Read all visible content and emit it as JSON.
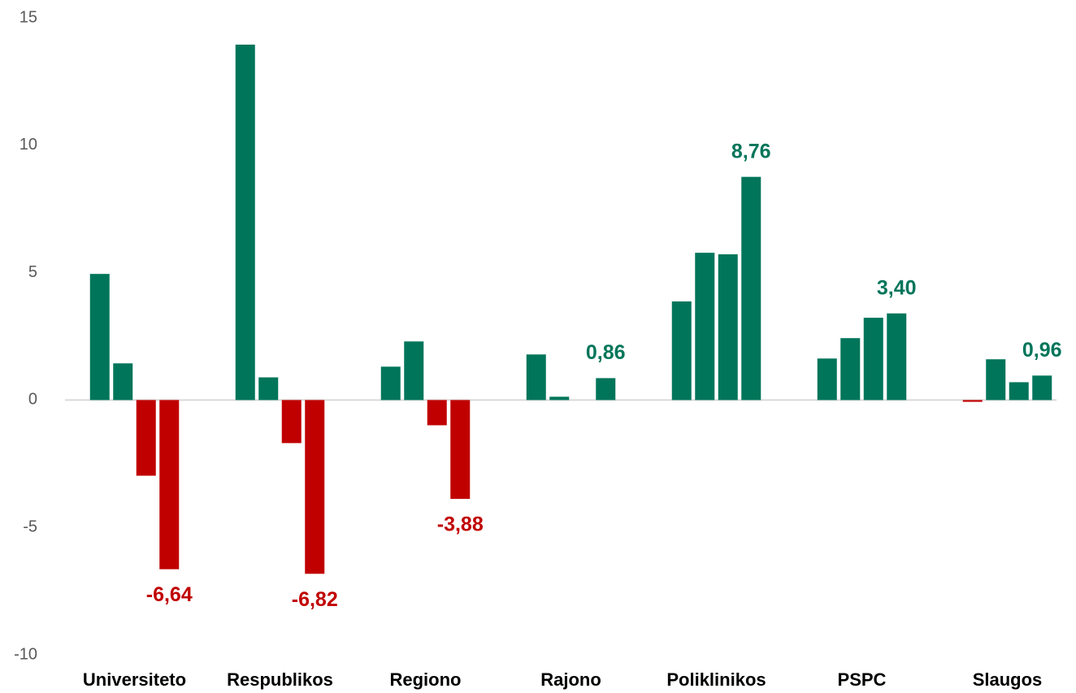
{
  "chart_data": {
    "type": "bar",
    "categories": [
      "Universiteto",
      "Respublikos",
      "Regiono",
      "Rajono",
      "Poliklinikos",
      "PSPC",
      "Slaugos"
    ],
    "series": [
      {
        "values": [
          4.95,
          13.95,
          1.31,
          1.79,
          3.87,
          1.63,
          -0.07
        ]
      },
      {
        "values": [
          1.44,
          0.89,
          2.3,
          0.13,
          5.78,
          2.43,
          1.6
        ]
      },
      {
        "values": [
          -2.97,
          -1.69,
          -0.99,
          0,
          5.72,
          3.23,
          0.7
        ]
      },
      {
        "values": [
          -6.64,
          -6.82,
          -3.88,
          0.86,
          8.76,
          3.4,
          0.96
        ],
        "value_labels": [
          "-6,64",
          "-6,82",
          "-3,88",
          "0,86",
          "8,76",
          "3,40",
          "0,96"
        ]
      }
    ],
    "positive_color": "#00755a",
    "negative_color": "#c00000",
    "ylim": [
      -10,
      15
    ],
    "yticks": [
      -10,
      -5,
      0,
      5,
      10,
      15
    ],
    "grid": false
  }
}
